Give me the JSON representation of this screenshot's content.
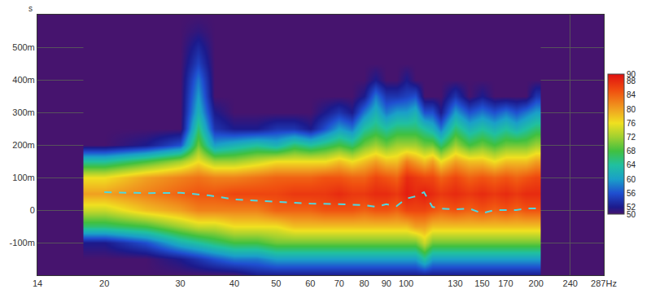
{
  "chart_data": {
    "type": "heatmap",
    "y_label": "s",
    "log": "x",
    "grid": true,
    "xlim": [
      14,
      287
    ],
    "xticks": [
      14,
      20,
      30,
      40,
      50,
      60,
      70,
      80,
      90,
      100,
      130,
      150,
      170,
      200,
      240,
      {
        "value": 287,
        "label": "287Hz"
      }
    ],
    "ylim": [
      -0.2,
      0.6
    ],
    "yticks": [
      {
        "value": -0.1,
        "label": "-100m"
      },
      0,
      {
        "value": 0.1,
        "label": "100m"
      },
      {
        "value": 0.2,
        "label": "200m"
      },
      {
        "value": 0.3,
        "label": "300m"
      },
      {
        "value": 0.4,
        "label": "400m"
      },
      {
        "value": 0.5,
        "label": "500m"
      }
    ],
    "x": [
      20,
      25,
      30,
      33,
      36,
      40,
      45,
      50,
      55,
      60,
      65,
      70,
      75,
      80,
      85,
      90,
      95,
      100,
      105,
      110,
      115,
      120,
      130,
      140,
      150,
      160,
      170,
      180,
      190,
      200
    ],
    "y": [
      -0.2,
      -0.15,
      -0.1,
      -0.05,
      0,
      0.05,
      0.1,
      0.15,
      0.2,
      0.25,
      0.3,
      0.35,
      0.4,
      0.45,
      0.5,
      0.55,
      0.6
    ],
    "cells": [
      [
        50,
        50,
        52,
        66,
        74,
        80,
        76,
        64,
        50,
        50,
        50,
        50,
        50,
        50,
        50,
        50,
        50
      ],
      [
        50,
        50,
        56,
        68,
        78,
        82,
        80,
        68,
        52,
        50,
        50,
        50,
        50,
        50,
        50,
        50,
        50
      ],
      [
        50,
        52,
        62,
        72,
        80,
        84,
        82,
        72,
        56,
        50,
        50,
        50,
        50,
        50,
        50,
        50,
        50
      ],
      [
        50,
        54,
        64,
        74,
        82,
        85,
        83,
        76,
        70,
        66,
        62,
        60,
        58,
        55,
        53,
        51,
        50
      ],
      [
        50,
        56,
        66,
        74,
        82,
        85,
        82,
        72,
        60,
        54,
        52,
        50,
        50,
        50,
        50,
        50,
        50
      ],
      [
        50,
        58,
        68,
        76,
        82,
        86,
        82,
        72,
        62,
        52,
        50,
        50,
        50,
        50,
        50,
        50,
        50
      ],
      [
        52,
        58,
        68,
        76,
        82,
        86,
        83,
        74,
        64,
        52,
        50,
        50,
        50,
        50,
        50,
        50,
        50
      ],
      [
        52,
        60,
        70,
        76,
        84,
        86,
        84,
        76,
        62,
        54,
        50,
        50,
        50,
        50,
        50,
        50,
        50
      ],
      [
        52,
        60,
        70,
        78,
        84,
        87,
        84,
        76,
        66,
        54,
        50,
        50,
        50,
        50,
        50,
        50,
        50
      ],
      [
        52,
        60,
        70,
        78,
        84,
        87,
        84,
        76,
        64,
        52,
        50,
        50,
        50,
        50,
        50,
        50,
        50
      ],
      [
        52,
        60,
        70,
        78,
        85,
        87,
        85,
        76,
        66,
        56,
        52,
        50,
        50,
        50,
        50,
        50,
        50
      ],
      [
        52,
        60,
        70,
        78,
        85,
        88,
        85,
        78,
        68,
        60,
        54,
        50,
        50,
        50,
        50,
        50,
        50
      ],
      [
        52,
        60,
        70,
        78,
        85,
        87,
        84,
        76,
        66,
        58,
        52,
        50,
        50,
        50,
        50,
        50,
        50
      ],
      [
        52,
        60,
        70,
        78,
        84,
        87,
        84,
        78,
        70,
        64,
        58,
        52,
        50,
        50,
        50,
        50,
        50
      ],
      [
        52,
        60,
        70,
        78,
        85,
        88,
        86,
        80,
        72,
        66,
        62,
        58,
        52,
        50,
        50,
        50,
        50
      ],
      [
        52,
        60,
        70,
        78,
        85,
        88,
        85,
        78,
        70,
        64,
        58,
        54,
        50,
        50,
        50,
        50,
        50
      ],
      [
        52,
        60,
        70,
        78,
        84,
        87,
        84,
        78,
        72,
        66,
        60,
        54,
        50,
        50,
        50,
        50,
        50
      ],
      [
        52,
        60,
        70,
        78,
        86,
        89,
        88,
        82,
        72,
        66,
        60,
        55,
        52,
        50,
        50,
        50,
        50
      ],
      [
        52,
        60,
        70,
        80,
        86,
        88,
        87,
        80,
        72,
        66,
        62,
        56,
        50,
        50,
        50,
        50,
        50
      ],
      [
        52,
        64,
        74,
        80,
        86,
        89,
        86,
        78,
        70,
        64,
        56,
        50,
        50,
        50,
        50,
        50,
        50
      ],
      [
        52,
        60,
        70,
        78,
        85,
        88,
        86,
        80,
        70,
        62,
        56,
        50,
        50,
        50,
        50,
        50,
        50
      ],
      [
        52,
        60,
        70,
        78,
        84,
        87,
        84,
        76,
        66,
        58,
        52,
        50,
        50,
        50,
        50,
        50,
        50
      ],
      [
        52,
        60,
        70,
        78,
        85,
        88,
        86,
        80,
        72,
        66,
        60,
        54,
        50,
        50,
        50,
        50,
        50
      ],
      [
        52,
        60,
        70,
        78,
        84,
        87,
        84,
        78,
        68,
        62,
        56,
        50,
        50,
        50,
        50,
        50,
        50
      ],
      [
        52,
        60,
        70,
        78,
        85,
        88,
        85,
        78,
        70,
        64,
        58,
        52,
        50,
        50,
        50,
        50,
        50
      ],
      [
        52,
        60,
        70,
        78,
        84,
        87,
        84,
        76,
        68,
        62,
        56,
        50,
        50,
        50,
        50,
        50,
        50
      ],
      [
        52,
        60,
        70,
        78,
        85,
        88,
        85,
        78,
        70,
        64,
        58,
        50,
        50,
        50,
        50,
        50,
        50
      ],
      [
        52,
        60,
        70,
        78,
        84,
        87,
        84,
        78,
        70,
        62,
        56,
        50,
        50,
        50,
        50,
        50,
        50
      ],
      [
        52,
        60,
        70,
        78,
        85,
        88,
        85,
        78,
        70,
        64,
        58,
        50,
        50,
        50,
        50,
        50,
        50
      ],
      [
        52,
        60,
        70,
        78,
        85,
        88,
        86,
        80,
        72,
        66,
        60,
        54,
        50,
        50,
        50,
        50,
        50
      ]
    ],
    "colorbar": {
      "range": [
        50,
        90
      ],
      "ticks": [
        50,
        52,
        56,
        60,
        64,
        68,
        72,
        76,
        80,
        84,
        88,
        90
      ]
    },
    "series": [
      {
        "type": "line",
        "color": "#4fd8e0",
        "line_style": "dashed",
        "x": [
          20,
          25,
          30,
          35,
          40,
          50,
          60,
          70,
          80,
          85,
          90,
          95,
          100,
          105,
          110,
          115,
          120,
          130,
          140,
          150,
          160,
          170,
          180,
          190,
          200
        ],
        "values": [
          0.055,
          0.052,
          0.053,
          0.045,
          0.033,
          0.025,
          0.02,
          0.018,
          0.015,
          0.01,
          0.018,
          0.012,
          0.035,
          0.042,
          0.055,
          0.01,
          0.005,
          0.002,
          0.005,
          -0.01,
          0.0,
          0.0,
          0.0,
          0.005,
          0.005
        ]
      }
    ]
  }
}
